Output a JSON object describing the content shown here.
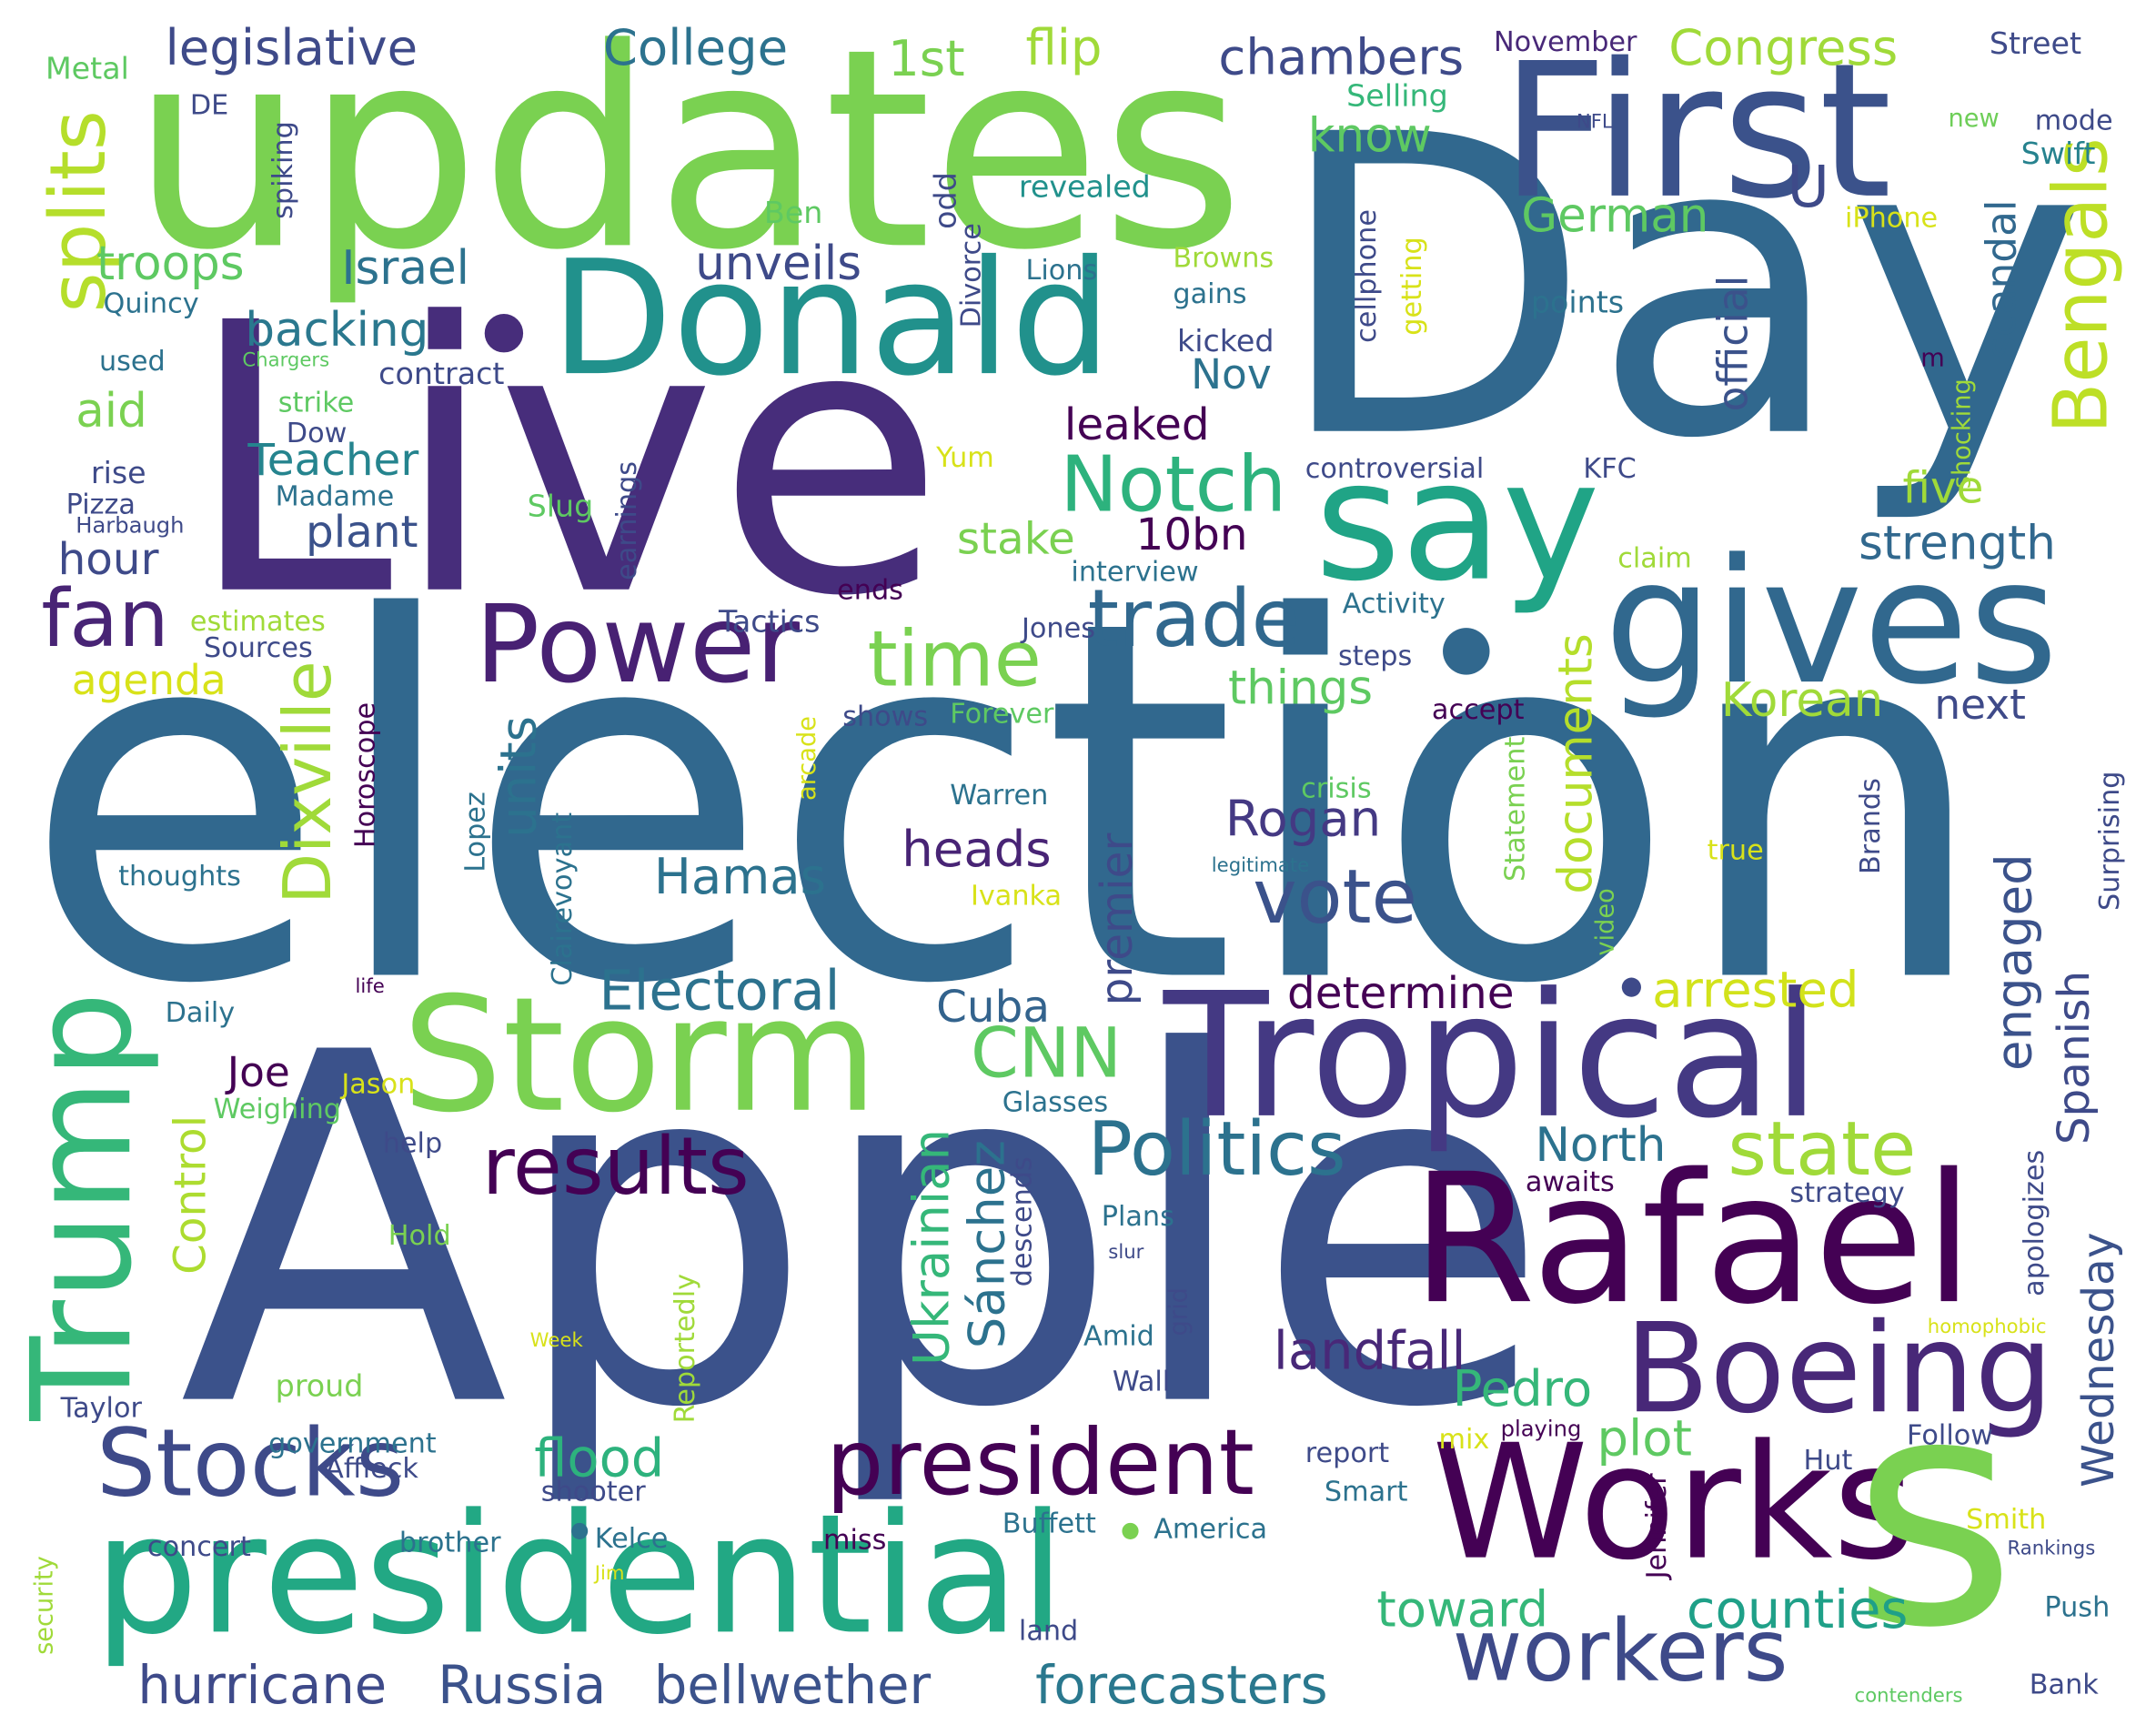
{
  "words": [
    {
      "text": "election",
      "color": "#31688e"
    },
    {
      "text": "Apple",
      "color": "#3b528b"
    },
    {
      "text": "Day",
      "color": "#31688e"
    },
    {
      "text": "Live",
      "color": "#472d7b"
    },
    {
      "text": "updates",
      "color": "#7ad151"
    },
    {
      "text": "First",
      "color": "#3b528b"
    },
    {
      "text": "Donald",
      "color": "#21918c"
    },
    {
      "text": "gives",
      "color": "#31688e"
    },
    {
      "text": "say",
      "color": "#20a486"
    },
    {
      "text": "Tropical",
      "color": "#443983"
    },
    {
      "text": "Storm",
      "color": "#7ad151"
    },
    {
      "text": "Rafael",
      "color": "#440154"
    },
    {
      "text": "Boeing",
      "color": "#482878"
    },
    {
      "text": "Works",
      "color": "#440154"
    },
    {
      "text": "s",
      "color": "#7ad151"
    },
    {
      "text": "presidential",
      "color": "#22a884"
    },
    {
      "text": "Trump",
      "color": "#35b779"
    },
    {
      "text": "Stocks",
      "color": "#3e4a89"
    },
    {
      "text": "president",
      "color": "#440154"
    },
    {
      "text": "workers",
      "color": "#3e4a89"
    },
    {
      "text": "Power",
      "color": "#482173"
    },
    {
      "text": "results",
      "color": "#440154"
    },
    {
      "text": "Politics",
      "color": "#2c728e"
    },
    {
      "text": "state",
      "color": "#a0da39"
    },
    {
      "text": "CNN",
      "color": "#5ec962"
    },
    {
      "text": "trade",
      "color": "#31688e"
    },
    {
      "text": "fan",
      "color": "#482475"
    },
    {
      "text": "time",
      "color": "#7ad151"
    },
    {
      "text": "vote",
      "color": "#3b528b"
    },
    {
      "text": "Notch",
      "color": "#2db27d"
    },
    {
      "text": "Bengals",
      "color": "#bddf26"
    },
    {
      "text": "splits",
      "color": "#b5de2b"
    },
    {
      "text": "Dixville",
      "color": "#a0da39"
    },
    {
      "text": "Electoral",
      "color": "#2c728e"
    },
    {
      "text": "hurricane",
      "color": "#3e4a89"
    },
    {
      "text": "Russia",
      "color": "#3b528b"
    },
    {
      "text": "bellwether",
      "color": "#3b528b"
    },
    {
      "text": "forecasters",
      "color": "#2a788e"
    },
    {
      "text": "counties",
      "color": "#1fa088"
    },
    {
      "text": "toward",
      "color": "#35b779"
    },
    {
      "text": "flood",
      "color": "#2db27d"
    },
    {
      "text": "landfall",
      "color": "#482878"
    },
    {
      "text": "arrested",
      "color": "#d2e21b"
    },
    {
      "text": "documents",
      "color": "#b5de2b"
    },
    {
      "text": "engaged",
      "color": "#3b528b"
    },
    {
      "text": "Spanish",
      "color": "#3e4a89"
    },
    {
      "text": "Wednesday",
      "color": "#3b528b"
    },
    {
      "text": "Pedro",
      "color": "#35b779"
    },
    {
      "text": "Sánchez",
      "color": "#2c728e"
    },
    {
      "text": "plot",
      "color": "#5ec962"
    },
    {
      "text": "Ukrainian",
      "color": "#35b779"
    },
    {
      "text": "Hamas",
      "color": "#2c728e"
    },
    {
      "text": "heads",
      "color": "#482475"
    },
    {
      "text": "Rogan",
      "color": "#443983"
    },
    {
      "text": "units",
      "color": "#2c728e"
    },
    {
      "text": "determine",
      "color": "#440154"
    },
    {
      "text": "Cuba",
      "color": "#33638d"
    },
    {
      "text": "premier",
      "color": "#3e4a89"
    },
    {
      "text": "North",
      "color": "#2c728e"
    },
    {
      "text": "Control",
      "color": "#addc30"
    },
    {
      "text": "Joe",
      "color": "#440154"
    },
    {
      "text": "things",
      "color": "#5ec962"
    },
    {
      "text": "Korean",
      "color": "#a0da39"
    },
    {
      "text": "next",
      "color": "#3e4a89"
    },
    {
      "text": "stake",
      "color": "#7ad151"
    },
    {
      "text": "10bn",
      "color": "#440154"
    },
    {
      "text": "strength",
      "color": "#31688e"
    },
    {
      "text": "five",
      "color": "#a0da39"
    },
    {
      "text": "scandal",
      "color": "#31688e"
    },
    {
      "text": "official",
      "color": "#3b528b"
    },
    {
      "text": "leaked",
      "color": "#440154"
    },
    {
      "text": "Nov",
      "color": "#2c728e"
    },
    {
      "text": "plant",
      "color": "#3b528b"
    },
    {
      "text": "Teacher",
      "color": "#25848e"
    },
    {
      "text": "hour",
      "color": "#3e4a89"
    },
    {
      "text": "agenda",
      "color": "#d8e219"
    },
    {
      "text": "aid",
      "color": "#7ad151"
    },
    {
      "text": "backing",
      "color": "#2a788e"
    },
    {
      "text": "troops",
      "color": "#5ec962"
    },
    {
      "text": "Israel",
      "color": "#2c728e"
    },
    {
      "text": "unveils",
      "color": "#3e4a89"
    },
    {
      "text": "German",
      "color": "#5ec962"
    },
    {
      "text": "know",
      "color": "#5ec962"
    },
    {
      "text": "U",
      "color": "#3e4a89"
    },
    {
      "text": "chambers",
      "color": "#3e4a89"
    },
    {
      "text": "Congress",
      "color": "#a0da39"
    },
    {
      "text": "legislative",
      "color": "#3e4a89"
    },
    {
      "text": "College",
      "color": "#2c728e"
    },
    {
      "text": "1st",
      "color": "#7ad151"
    },
    {
      "text": "flip",
      "color": "#a0da39"
    },
    {
      "text": "November",
      "color": "#482878"
    },
    {
      "text": "Street",
      "color": "#3e4a89"
    },
    {
      "text": "mode",
      "color": "#3e4a89"
    },
    {
      "text": "Swift",
      "color": "#26828e"
    },
    {
      "text": "new",
      "color": "#6ece58"
    },
    {
      "text": "NFL",
      "color": "#3e4a89"
    },
    {
      "text": "Selling",
      "color": "#35b779"
    },
    {
      "text": "iPhone",
      "color": "#d8e219"
    },
    {
      "text": "revealed",
      "color": "#21918c"
    },
    {
      "text": "Ben",
      "color": "#5ec962"
    },
    {
      "text": "odd",
      "color": "#3e4a89"
    },
    {
      "text": "Divorce",
      "color": "#3e4a89"
    },
    {
      "text": "Lions",
      "color": "#2c728e"
    },
    {
      "text": "Browns",
      "color": "#a0da39"
    },
    {
      "text": "gains",
      "color": "#2c728e"
    },
    {
      "text": "kicked",
      "color": "#3e4a89"
    },
    {
      "text": "cellphone",
      "color": "#3e4a89"
    },
    {
      "text": "getting",
      "color": "#d8e219"
    },
    {
      "text": "points",
      "color": "#2c728e"
    },
    {
      "text": "m",
      "color": "#440154"
    },
    {
      "text": "shocking",
      "color": "#a0da39"
    },
    {
      "text": "Metal",
      "color": "#5ec962"
    },
    {
      "text": "DE",
      "color": "#3e4a89"
    },
    {
      "text": "spiking",
      "color": "#3e4a89"
    },
    {
      "text": "Quincy",
      "color": "#2c728e"
    },
    {
      "text": "used",
      "color": "#2c728e"
    },
    {
      "text": "Chargers",
      "color": "#5ec962"
    },
    {
      "text": "contract",
      "color": "#3e4a89"
    },
    {
      "text": "strike",
      "color": "#5ec962"
    },
    {
      "text": "Dow",
      "color": "#3e4a89"
    },
    {
      "text": "rise",
      "color": "#3e4a89"
    },
    {
      "text": "Pizza",
      "color": "#3e4a89"
    },
    {
      "text": "Madame",
      "color": "#2c728e"
    },
    {
      "text": "Harbaugh",
      "color": "#3e4a89"
    },
    {
      "text": "Slug",
      "color": "#5ec962"
    },
    {
      "text": "Yum",
      "color": "#d8e219"
    },
    {
      "text": "controversial",
      "color": "#3e4a89"
    },
    {
      "text": "KFC",
      "color": "#3e4a89"
    },
    {
      "text": "earnings",
      "color": "#3e4a89"
    },
    {
      "text": "interview",
      "color": "#2c728e"
    },
    {
      "text": "claim",
      "color": "#a0da39"
    },
    {
      "text": "ends",
      "color": "#440154"
    },
    {
      "text": "Activity",
      "color": "#2c728e"
    },
    {
      "text": "estimates",
      "color": "#a0da39"
    },
    {
      "text": "Sources",
      "color": "#3e4a89"
    },
    {
      "text": "Tactics",
      "color": "#3e4a89"
    },
    {
      "text": "Jones",
      "color": "#3e4a89"
    },
    {
      "text": "steps",
      "color": "#3e4a89"
    },
    {
      "text": "shows",
      "color": "#3e4a89"
    },
    {
      "text": "Forever",
      "color": "#5ec962"
    },
    {
      "text": "accept",
      "color": "#440154"
    },
    {
      "text": "Horoscope",
      "color": "#440154"
    },
    {
      "text": "Lopez",
      "color": "#2c728e"
    },
    {
      "text": "arcade",
      "color": "#d8e219"
    },
    {
      "text": "Warren",
      "color": "#2c728e"
    },
    {
      "text": "crisis",
      "color": "#5ec962"
    },
    {
      "text": "Statement",
      "color": "#7ad151"
    },
    {
      "text": "true",
      "color": "#d8e219"
    },
    {
      "text": "Brands",
      "color": "#3e4a89"
    },
    {
      "text": "Surprising",
      "color": "#3e4a89"
    },
    {
      "text": "thoughts",
      "color": "#2c728e"
    },
    {
      "text": "Clairevoyant",
      "color": "#2c728e"
    },
    {
      "text": "legitimate",
      "color": "#2c728e"
    },
    {
      "text": "Ivanka",
      "color": "#d8e219"
    },
    {
      "text": "video",
      "color": "#7ad151"
    },
    {
      "text": "life",
      "color": "#440154"
    },
    {
      "text": "Daily",
      "color": "#2c728e"
    },
    {
      "text": "Jason",
      "color": "#d8e219"
    },
    {
      "text": "Weighing",
      "color": "#5ec962"
    },
    {
      "text": "Glasses",
      "color": "#2c728e"
    },
    {
      "text": "help",
      "color": "#3e4a89"
    },
    {
      "text": "awaits",
      "color": "#440154"
    },
    {
      "text": "strategy",
      "color": "#3e4a89"
    },
    {
      "text": "apologizes",
      "color": "#3e4a89"
    },
    {
      "text": "Hold",
      "color": "#7ad151"
    },
    {
      "text": "Plans",
      "color": "#2c728e"
    },
    {
      "text": "descends",
      "color": "#3e4a89"
    },
    {
      "text": "slur",
      "color": "#3e4a89"
    },
    {
      "text": "grid",
      "color": "#3e4a89"
    },
    {
      "text": "Amid",
      "color": "#2c728e"
    },
    {
      "text": "Reportedly",
      "color": "#a0da39"
    },
    {
      "text": "Week",
      "color": "#d8e219"
    },
    {
      "text": "homophobic",
      "color": "#d8e219"
    },
    {
      "text": "proud",
      "color": "#7ad151"
    },
    {
      "text": "Wall",
      "color": "#3e4a89"
    },
    {
      "text": "Taylor",
      "color": "#3e4a89"
    },
    {
      "text": "government",
      "color": "#2c728e"
    },
    {
      "text": "Affleck",
      "color": "#3e4a89"
    },
    {
      "text": "report",
      "color": "#3e4a89"
    },
    {
      "text": "mix",
      "color": "#d8e219"
    },
    {
      "text": "playing",
      "color": "#440154"
    },
    {
      "text": "Follow",
      "color": "#3e4a89"
    },
    {
      "text": "Hut",
      "color": "#3e4a89"
    },
    {
      "text": "Jennifer",
      "color": "#440154"
    },
    {
      "text": "shooter",
      "color": "#3e4a89"
    },
    {
      "text": "Smart",
      "color": "#2c728e"
    },
    {
      "text": "concert",
      "color": "#3e4a89"
    },
    {
      "text": "brother",
      "color": "#2c728e"
    },
    {
      "text": "Kelce",
      "color": "#2c728e"
    },
    {
      "text": "miss",
      "color": "#440154"
    },
    {
      "text": "Buffett",
      "color": "#2c728e"
    },
    {
      "text": "America",
      "color": "#2c728e"
    },
    {
      "text": "Smith",
      "color": "#d8e219"
    },
    {
      "text": "Rankings",
      "color": "#3e4a89"
    },
    {
      "text": "Push",
      "color": "#2c728e"
    },
    {
      "text": "Jim",
      "color": "#d8e219"
    },
    {
      "text": "land",
      "color": "#3e4a89"
    },
    {
      "text": "security",
      "color": "#a0da39"
    },
    {
      "text": "contenders",
      "color": "#5ec962"
    },
    {
      "text": "Bank",
      "color": "#3e4a89"
    }
  ]
}
